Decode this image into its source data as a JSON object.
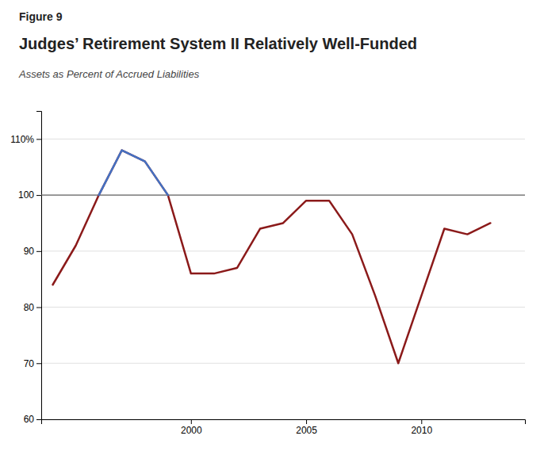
{
  "chart_data": {
    "type": "line",
    "title": "Judges’ Retirement System II Relatively Well-Funded",
    "subtitle": "Assets as Percent of Accrued Liabilities",
    "annotations": [
      "Figure 9"
    ],
    "x": [
      1994,
      1995,
      1996,
      1997,
      1998,
      1999,
      2000,
      2001,
      2002,
      2003,
      2004,
      2005,
      2006,
      2007,
      2008,
      2009,
      2010,
      2011,
      2012,
      2013
    ],
    "series": [
      {
        "color": "#8B1A1A",
        "values": [
          84,
          91,
          100,
          108,
          106,
          100,
          86,
          86,
          87,
          94,
          95,
          99,
          99,
          93,
          82,
          70,
          82,
          94,
          93,
          95
        ]
      },
      {
        "color": "#4472C4",
        "values": [
          null,
          null,
          100,
          108,
          106,
          100,
          null,
          null,
          null,
          null,
          null,
          null,
          null,
          null,
          null,
          null,
          null,
          null,
          null,
          null
        ]
      }
    ],
    "reference_line": 100,
    "xlim": [
      1993.5,
      2014.5
    ],
    "xticks": [
      2000,
      2005,
      2010
    ],
    "ylim": [
      60,
      115
    ],
    "yticks": [
      60,
      70,
      80,
      90,
      100,
      {
        "value": 110,
        "label": "110%"
      }
    ],
    "grid": true
  }
}
